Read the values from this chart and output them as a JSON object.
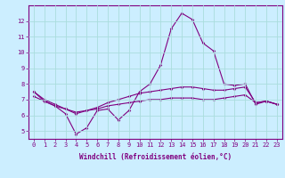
{
  "xlabel": "Windchill (Refroidissement éolien,°C)",
  "x": [
    0,
    1,
    2,
    3,
    4,
    5,
    6,
    7,
    8,
    9,
    10,
    11,
    12,
    13,
    14,
    15,
    16,
    17,
    18,
    19,
    20,
    21,
    22,
    23
  ],
  "line1": [
    7.5,
    6.9,
    6.6,
    6.1,
    4.8,
    5.2,
    6.3,
    6.4,
    5.7,
    6.3,
    7.5,
    8.0,
    9.2,
    11.5,
    12.5,
    12.1,
    10.6,
    10.1,
    8.0,
    7.9,
    8.0,
    6.7,
    6.9,
    6.7
  ],
  "line2": [
    7.5,
    7.0,
    6.7,
    6.4,
    6.1,
    6.3,
    6.5,
    6.8,
    7.0,
    7.2,
    7.4,
    7.5,
    7.6,
    7.7,
    7.8,
    7.8,
    7.7,
    7.6,
    7.6,
    7.7,
    7.8,
    6.8,
    6.9,
    6.7
  ],
  "line3": [
    7.2,
    6.9,
    6.6,
    6.4,
    6.2,
    6.3,
    6.4,
    6.6,
    6.7,
    6.8,
    6.9,
    7.0,
    7.0,
    7.1,
    7.1,
    7.1,
    7.0,
    7.0,
    7.1,
    7.2,
    7.3,
    6.8,
    6.9,
    6.7
  ],
  "line_color": "#800080",
  "bg_color": "#cceeff",
  "grid_color": "#aadddd",
  "axis_color": "#800080",
  "text_color": "#800080",
  "ylim": [
    4.5,
    13.0
  ],
  "yticks": [
    5,
    6,
    7,
    8,
    9,
    10,
    11,
    12
  ],
  "xlim": [
    -0.5,
    23.5
  ],
  "marker": "D",
  "markersize": 1.8,
  "linewidth": 0.8,
  "tick_fontsize": 5.0,
  "xlabel_fontsize": 5.5
}
